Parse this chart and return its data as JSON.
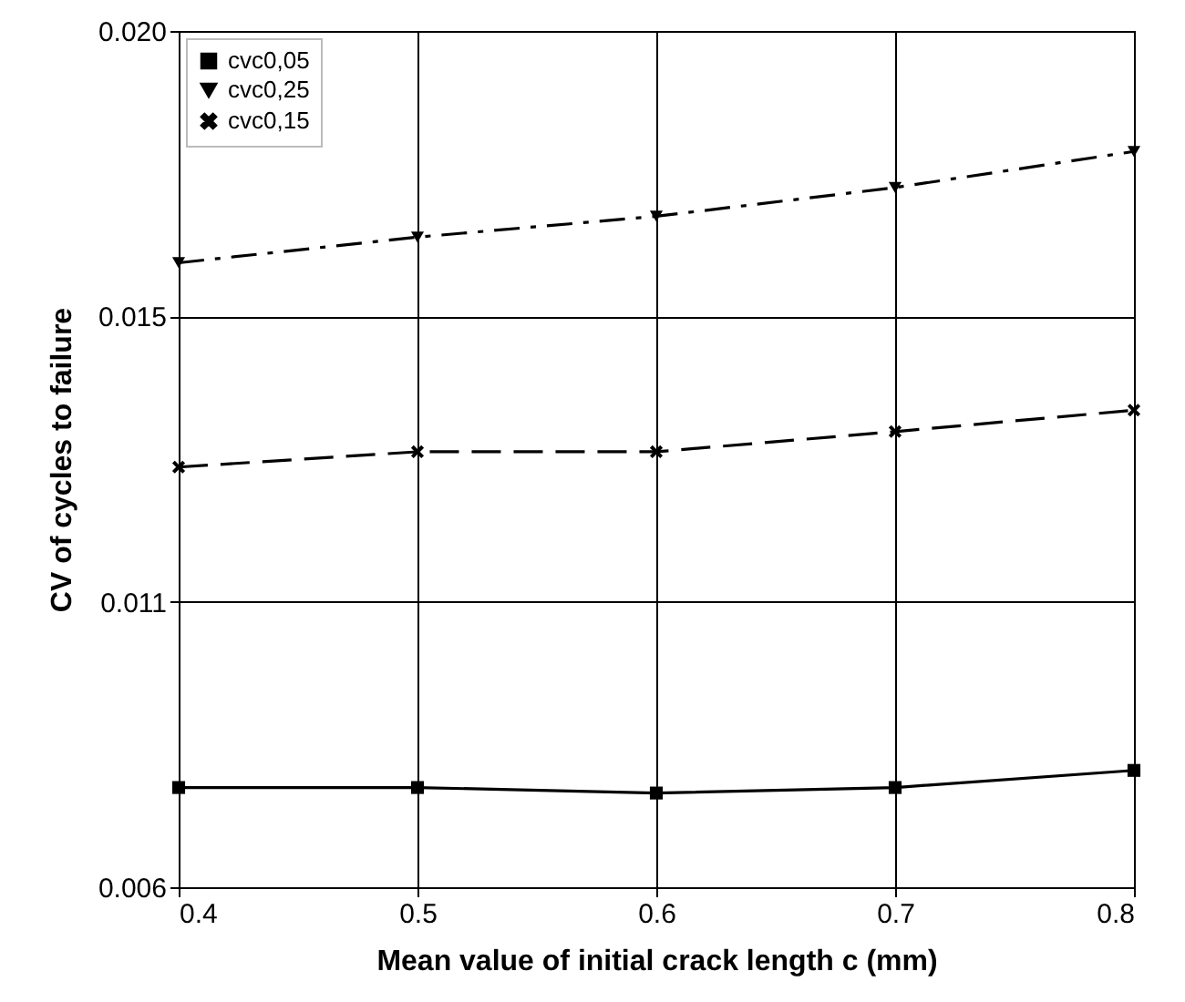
{
  "chart_data": {
    "type": "line",
    "xlabel": "Mean value of initial crack length c (mm)",
    "ylabel": "CV of cycles to failure",
    "x": [
      0.4,
      0.5,
      0.6,
      0.7,
      0.8
    ],
    "series": [
      {
        "name": "cvc0,05",
        "color": "#000000",
        "marker": "square",
        "line_style": "solid",
        "values": [
          0.00763,
          0.00763,
          0.00754,
          0.00763,
          0.00791
        ]
      },
      {
        "name": "cvc0,25",
        "color": "#000000",
        "marker": "triangle",
        "line_style": "dashed",
        "values": [
          0.01621,
          0.01663,
          0.01697,
          0.01744,
          0.01803
        ]
      },
      {
        "name": "cvc0,15",
        "color": "#000000",
        "marker": "cross",
        "line_style": "dashed",
        "values": [
          0.01287,
          0.01312,
          0.01312,
          0.01345,
          0.0138
        ]
      }
    ],
    "xlim": [
      0.4,
      0.8
    ],
    "xticks": [
      0.4,
      0.5,
      0.6,
      0.7,
      0.8
    ],
    "ylim": [
      0.006,
      0.02
    ],
    "yticks": [
      {
        "value": 0.006,
        "label": "0.006"
      },
      {
        "value": 0.0106667,
        "label": "0.011"
      },
      {
        "value": 0.0153333,
        "label": "0.015"
      },
      {
        "value": 0.02,
        "label": "0.020"
      }
    ],
    "grid": true,
    "legend": "top left"
  }
}
